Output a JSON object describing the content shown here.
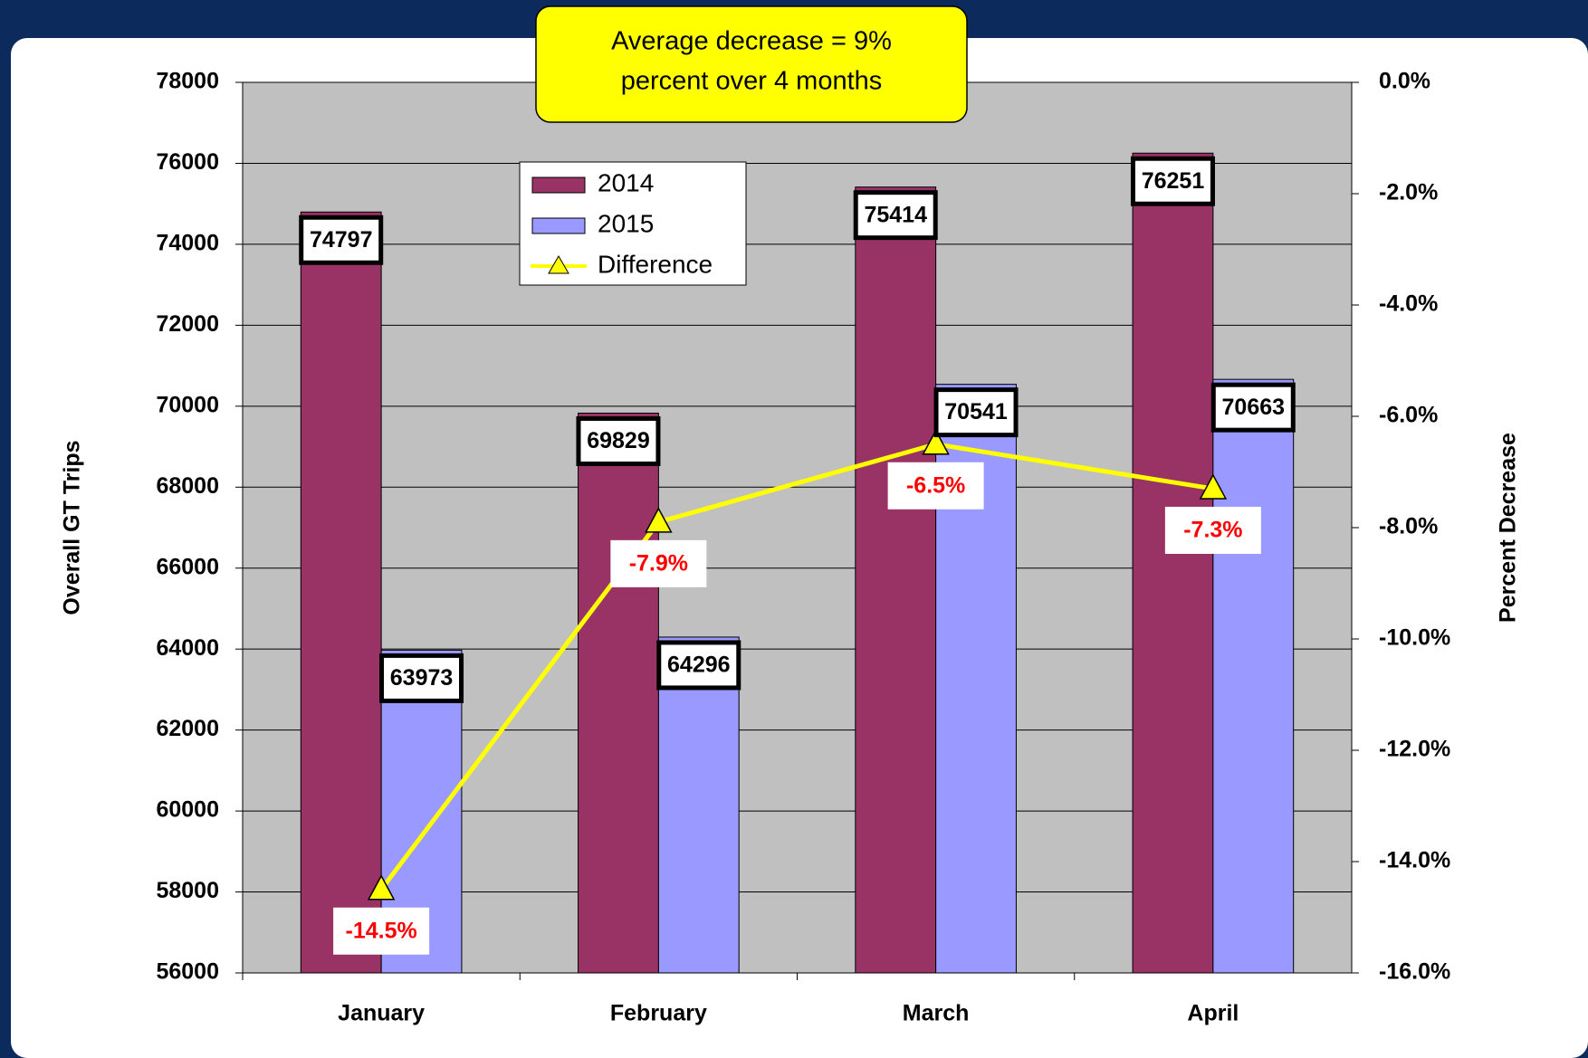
{
  "chart_data": {
    "type": "bar",
    "annotation": [
      "Average decrease = 9%",
      "percent over 4 months"
    ],
    "y_label": "Overall GT Trips",
    "y2_label": "Percent Decrease",
    "categories": [
      "January",
      "February",
      "March",
      "April"
    ],
    "series": [
      {
        "name": "2014",
        "type": "bar",
        "color": "#993366",
        "values": [
          74797,
          69829,
          75414,
          76251
        ]
      },
      {
        "name": "2015",
        "type": "bar",
        "color": "#9999ff",
        "values": [
          63973,
          64296,
          70541,
          70663
        ]
      },
      {
        "name": "Difference",
        "type": "line",
        "axis": "y2",
        "color": "#ffff00",
        "values": [
          -14.5,
          -7.9,
          -6.5,
          -7.3
        ],
        "value_labels": [
          "-14.5%",
          "-7.9%",
          "-6.5%",
          "-7.3%"
        ]
      }
    ],
    "ylim": [
      56000,
      78000
    ],
    "yticks": [
      56000,
      58000,
      60000,
      62000,
      64000,
      66000,
      68000,
      70000,
      72000,
      74000,
      76000,
      78000
    ],
    "y2lim": [
      -16,
      0
    ],
    "y2ticks": [
      {
        "value": -16,
        "label": "-16.0%"
      },
      {
        "value": -14,
        "label": "-14.0%"
      },
      {
        "value": -12,
        "label": "-12.0%"
      },
      {
        "value": -10,
        "label": "-10.0%"
      },
      {
        "value": -8,
        "label": "-8.0%"
      },
      {
        "value": -6,
        "label": "-6.0%"
      },
      {
        "value": -4,
        "label": "-4.0%"
      },
      {
        "value": -2,
        "label": "-2.0%"
      },
      {
        "value": 0,
        "label": "0.0%"
      }
    ],
    "grid": true,
    "plot_background": "#c0c0c0"
  }
}
